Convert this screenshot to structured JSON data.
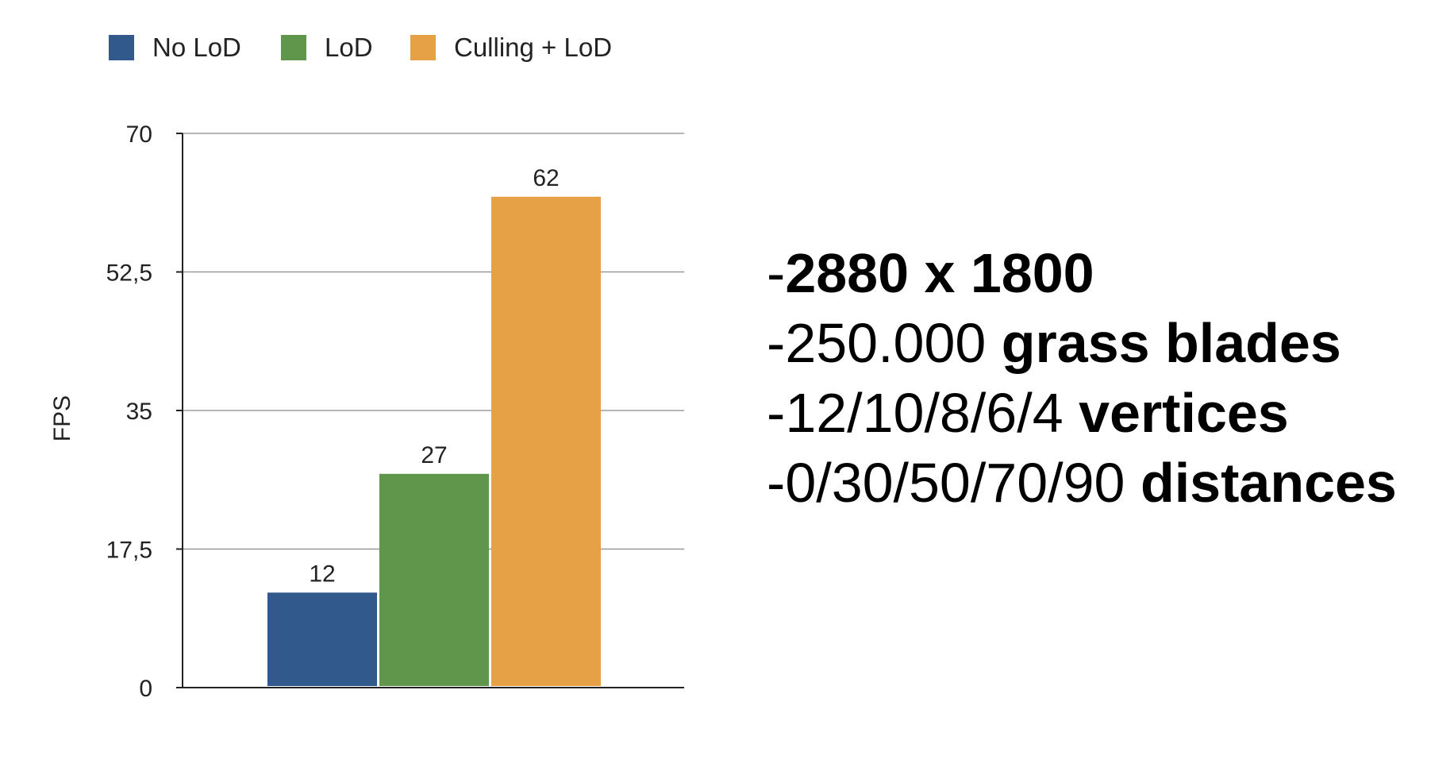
{
  "chart_data": {
    "type": "bar",
    "title": "",
    "xlabel": "",
    "ylabel": "FPS",
    "ylim": [
      0,
      70
    ],
    "yticks": [
      "0",
      "17,5",
      "35",
      "52,5",
      "70"
    ],
    "ytick_values": [
      0,
      17.5,
      35,
      52.5,
      70
    ],
    "grid": true,
    "legend_position": "top-left",
    "categories": [
      ""
    ],
    "series": [
      {
        "name": "No LoD",
        "values": [
          12
        ],
        "value_label": "12",
        "color": "#31598b"
      },
      {
        "name": "LoD",
        "values": [
          27
        ],
        "value_label": "27",
        "color": "#5f964c"
      },
      {
        "name": "Culling + LoD",
        "values": [
          62
        ],
        "value_label": "62",
        "color": "#e6a046"
      }
    ]
  },
  "specs": [
    {
      "prefix": "-",
      "value": "",
      "label": "2880 x 1800"
    },
    {
      "prefix": "-",
      "value": "250.000 ",
      "label": "grass blades"
    },
    {
      "prefix": "-",
      "value": "12/10/8/6/4 ",
      "label": "vertices"
    },
    {
      "prefix": "-",
      "value": "0/30/50/70/90 ",
      "label": "distances"
    }
  ]
}
